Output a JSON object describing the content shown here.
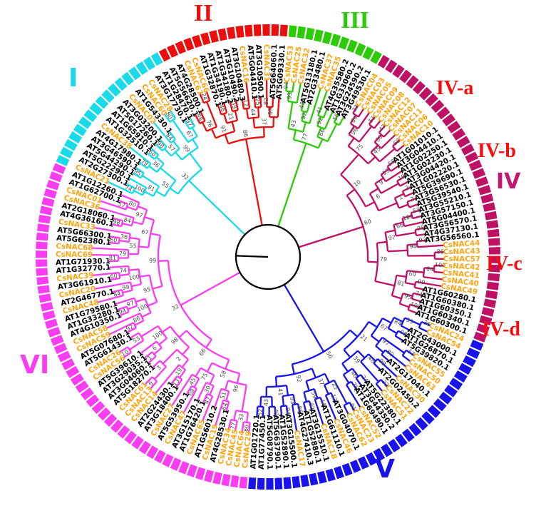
{
  "figure": {
    "description": "Circular phylogenetic tree of CsNAC and Arabidopsis NAC genes clustered into six groups",
    "background": "#ffffff",
    "leaf_label_colors": {
      "cs_genes": "#FFA40E",
      "at_genes": "#000000"
    },
    "bootstrap_color": "#4b4b4b",
    "branch_root_color": "#000000",
    "groups": [
      {
        "id": "I",
        "label": "I",
        "color": "#17DBE9",
        "title_color": "#17DBE9",
        "leaves": [
          "CsNAC21",
          "AT2G27300.1",
          "AT5G22290.1",
          "AT5G44290.1",
          "AT3G46590.1",
          "AT4G17980.1",
          "CsNAC38",
          "AT1G32510.1",
          "AT1G65910.1",
          "AT5G17260.1",
          "AT3G03200.1",
          "CsNAC02",
          "AT1G54330.1",
          "CsNAC60",
          "CsNAC28",
          "AT3G17730.1",
          "AT1G28470.1"
        ]
      },
      {
        "id": "II",
        "label": "II",
        "color": "#EC0D0D",
        "title_color": "#EC0D0D",
        "leaves": [
          "AT5G56620.1",
          "AT4G28500.1",
          "CsNAC67",
          "CsNAC66",
          "AT1G32870.1",
          "AT1G34190.1",
          "AT1G34180.2",
          "AT3G10490.2",
          "AT3G10480.3",
          "CsNAC16",
          "AT5G04410.1",
          "AT3G10500.1",
          "CsNAC31",
          "AT5G64060.1",
          "AT5G09330.1"
        ]
      },
      {
        "id": "III",
        "label": "III",
        "color": "#2BCB06",
        "title_color": "#2BCB06",
        "leaves": [
          "CsNAC53",
          "CsNAC25",
          "CsNAC32",
          "AT5G13180.1",
          "AT2G33480.1",
          "CsNAC37",
          "CsNAC35",
          "AT4G35580.2",
          "AT1G33060.2",
          "AT3G24590.2",
          "AT3G49530.1"
        ]
      },
      {
        "id": "IV",
        "label": "IV",
        "color": "#BE1164",
        "title_color": "#C21570",
        "leaves": [
          "CsNAC04",
          "CsNAC03",
          "CsNAC05",
          "CsNAC09",
          "CsNAC08",
          "CsNAC12",
          "CsNAC07",
          "CsNAC11",
          "CsNAC06",
          "CsNAC10",
          "AT1G01010.1",
          "AT3G04410.1",
          "AT1G02250.1",
          "AT1G02230.1",
          "AT3G04420.1",
          "AT1G02220.1",
          "AT5G39690.1",
          "AT3G56530.1",
          "AT5G39540.1",
          "AT3G55210.1",
          "AT3G57150.1",
          "AT5G04400.1",
          "AT3G56570.1",
          "AT4G37130.1",
          "AT3G56560.1",
          "CsNAC44",
          "CsNAC43",
          "CsNAC57",
          "CsNAC42",
          "CsNAC41",
          "CsNAC40",
          "CsNAC49",
          "AT1G60280.1",
          "AT1G60380.1",
          "AT1G60350.1",
          "AT1G60340.1",
          "AT1G60300.1"
        ]
      },
      {
        "id": "V",
        "label": "V",
        "color": "#1713EA",
        "title_color": "#1713EA",
        "leaves": [
          "CsNAC24",
          "CsNAC54",
          "AT2G43000.1",
          "AT1G26870.1",
          "AT5G39820.1",
          "CsNAC55",
          "CsNAC50",
          "CsNAC63",
          "AT2G17040.1",
          "CsNAC30",
          "AT2G02450.2",
          "CsNAC22",
          "CsNAC51",
          "AT5G22380.1",
          "AT3G44350.2",
          "AT1G69490.1",
          "CsNAC52",
          "CsNAC23",
          "CsNAC62",
          "AT3G04070.1",
          "CsNAC46",
          "AT1G61110.1",
          "CsNAC18",
          "AT3G15510.1",
          "AT1G52880.1",
          "AT4G27410.3",
          "CsNAC17",
          "AT3G15500.1",
          "AT1G52890.1",
          "AT5G63790.1",
          "AT5G08790.1",
          "AT1G77450.1",
          "AT1G01720.1"
        ]
      },
      {
        "id": "VI",
        "label": "VI",
        "color": "#FA3CF2",
        "title_color": "#FA3CF2",
        "leaves": [
          "CsNAC29",
          "CsNAC64",
          "CsNAC45",
          "CsNAC34",
          "AT4G28530.1",
          "CsNAC19",
          "AT1G56010.2",
          "CsNAC65",
          "AT1G76420.1",
          "AT3G15170.1",
          "CsNAC47",
          "AT5G53950.1",
          "CsNAC27",
          "AT3G18400.1",
          "AT2G24430.1",
          "CsNAC14",
          "CsNAC13",
          "CsNAC61",
          "AT5G18270.1",
          "AT3G04060.1",
          "AT3G29035.1",
          "AT5G39610.1",
          "CsNAC56",
          "CsNAC26",
          "AT5G61430.1",
          "AT5G07680.1",
          "CsNAC59",
          "CsNAC58",
          "AT4G10350.1",
          "AT1G33280.1",
          "AT1G79580.1",
          "CsNAC48",
          "AT2G46770.1",
          "CsNAC20",
          "AT3G61910.1",
          "CsNAC39",
          "AT1G32770.1",
          "AT1G71930.1",
          "CsNAC69",
          "CsNAC68",
          "AT5G62380.1",
          "AT5G66300.1",
          "CsNAC33",
          "AT4G36160.1",
          "AT2G18060.1",
          "CsNAC36",
          "CsNAC01",
          "AT1G62700.1",
          "AT1G12260.1"
        ]
      }
    ],
    "subgroup_labels": [
      {
        "label": "IV-a",
        "color": "#FA0A0A"
      },
      {
        "label": "IV-b",
        "color": "#FA0A0A"
      },
      {
        "label": "IV-c",
        "color": "#FA0A0A"
      },
      {
        "label": "IV-d",
        "color": "#FA0A0A"
      }
    ],
    "bootstrap_values": [
      74,
      100,
      95,
      81,
      79,
      60,
      36,
      55,
      98,
      84,
      57,
      80,
      97,
      67,
      99,
      32,
      48,
      24,
      76,
      46,
      39,
      21,
      91,
      12,
      25,
      44,
      82,
      59,
      37,
      86,
      94,
      93,
      49,
      52,
      43,
      41,
      92,
      56,
      66,
      77,
      33,
      64,
      51,
      96,
      47,
      30,
      68,
      45,
      75,
      58,
      13,
      19,
      9,
      3,
      2,
      1,
      6,
      10,
      53,
      100,
      98,
      66,
      92,
      86,
      94,
      97,
      100,
      84,
      99,
      60
    ]
  }
}
